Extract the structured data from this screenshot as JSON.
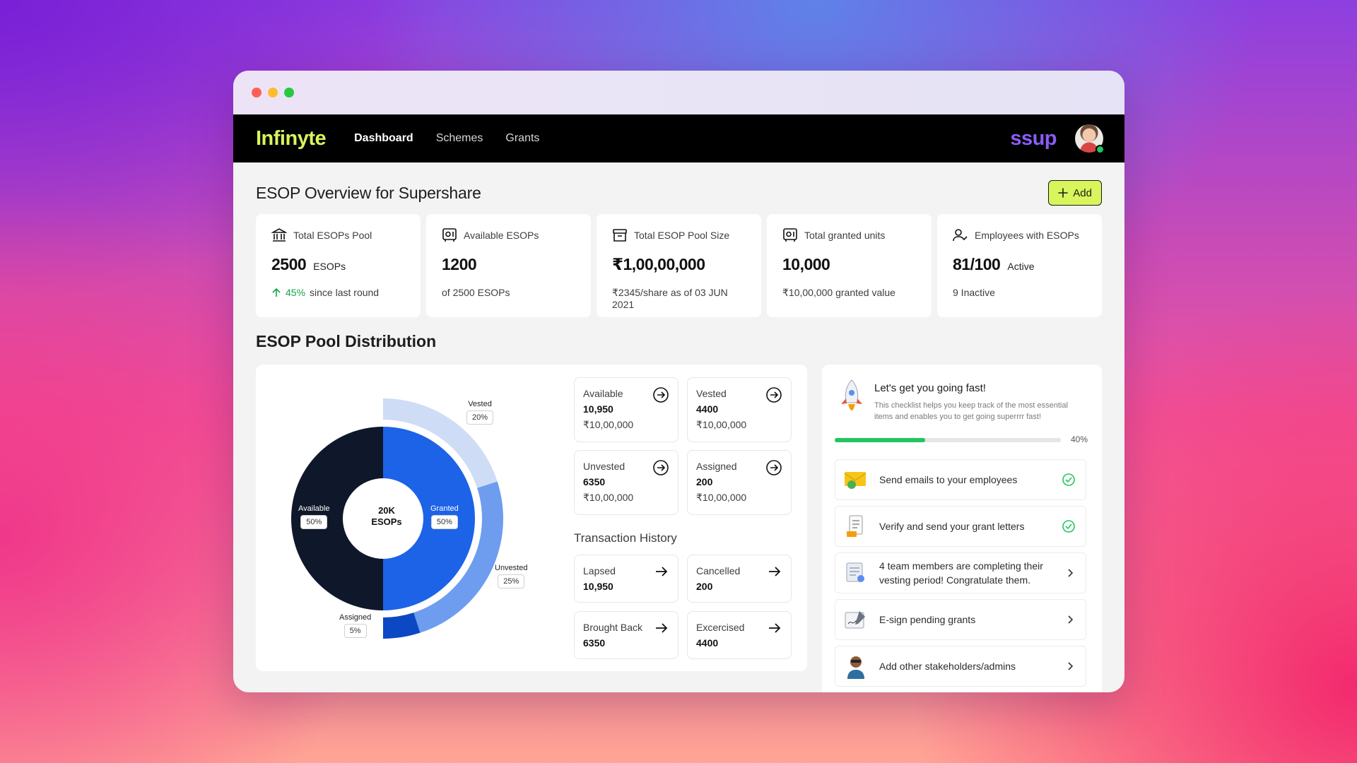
{
  "window": {
    "dots": [
      "#ff5f57",
      "#febc2e",
      "#28c840"
    ]
  },
  "navbar": {
    "logo": "Infinyte",
    "links": [
      "Dashboard",
      "Schemes",
      "Grants"
    ],
    "active": "Dashboard",
    "company_logo": "ssup"
  },
  "overview": {
    "title": "ESOP Overview for Supershare",
    "add_label": "Add"
  },
  "stats": [
    {
      "icon": "bank-icon",
      "label": "Total ESOPs Pool",
      "value": "2500",
      "unit": "ESOPs",
      "trend": "45%",
      "sub": "since last round"
    },
    {
      "icon": "safe-icon",
      "label": "Available ESOPs",
      "value": "1200",
      "unit": "",
      "sub": "of 2500 ESOPs"
    },
    {
      "icon": "archive-icon",
      "label": "Total ESOP Pool Size",
      "value": "₹1,00,00,000",
      "unit": "",
      "sub": "₹2345/share as of 03 JUN 2021"
    },
    {
      "icon": "safe-icon",
      "label": "Total granted units",
      "value": "10,000",
      "unit": "",
      "sub": "₹10,00,000 granted value"
    },
    {
      "icon": "users-icon",
      "label": "Employees with ESOPs",
      "value": "81/100",
      "unit": "Active",
      "sub": "9 Inactive"
    }
  ],
  "distribution": {
    "title": "ESOP Pool Distribution",
    "center_value": "20K",
    "center_unit": "ESOPs",
    "labels": {
      "vested": {
        "name": "Vested",
        "pct": "20%"
      },
      "unvested": {
        "name": "Unvested",
        "pct": "25%"
      },
      "assigned": {
        "name": "Assigned",
        "pct": "5%"
      },
      "available": {
        "name": "Available",
        "pct": "50%"
      },
      "granted": {
        "name": "Granted",
        "pct": "50%"
      }
    },
    "colors": {
      "available": "#0f172a",
      "granted": "#1d63e8",
      "vested": "#cfdcf6",
      "unvested": "#6e9cef",
      "assigned": "#0d48c4"
    },
    "tiles": [
      {
        "label": "Available",
        "value": "10,950",
        "amount": "₹10,00,000"
      },
      {
        "label": "Vested",
        "value": "4400",
        "amount": "₹10,00,000"
      },
      {
        "label": "Unvested",
        "value": "6350",
        "amount": "₹10,00,000"
      },
      {
        "label": "Assigned",
        "value": "200",
        "amount": "₹10,00,000"
      }
    ],
    "transaction_title": "Transaction History",
    "transactions": [
      {
        "label": "Lapsed",
        "value": "10,950"
      },
      {
        "label": "Cancelled",
        "value": "200"
      },
      {
        "label": "Brought Back",
        "value": "6350"
      },
      {
        "label": "Excercised",
        "value": "4400"
      }
    ]
  },
  "chart_data": {
    "type": "pie",
    "title": "",
    "center_label": "20K ESOPs",
    "inner": [
      {
        "label": "Available",
        "value": 50
      },
      {
        "label": "Granted",
        "value": 50
      }
    ],
    "outer": [
      {
        "label": "Vested",
        "value": 20
      },
      {
        "label": "Unvested",
        "value": 25
      },
      {
        "label": "Assigned",
        "value": 5
      }
    ]
  },
  "checklist": {
    "title": "Let's get you going fast!",
    "subtitle": "This checklist helps you keep track of the most essential items and enables you to get going superrrr fast!",
    "progress": 40,
    "progress_label": "40%",
    "tasks": [
      {
        "icon": "email-icon",
        "text": "Send emails to your employees",
        "status": "done"
      },
      {
        "icon": "document-icon",
        "text": "Verify and send your grant letters",
        "status": "done"
      },
      {
        "icon": "certificate-icon",
        "text": "4 team members are completing their vesting period! Congratulate them.",
        "status": "pending"
      },
      {
        "icon": "signature-icon",
        "text": "E-sign pending grants",
        "status": "pending"
      },
      {
        "icon": "person-icon",
        "text": "Add other stakeholders/admins",
        "status": "pending"
      }
    ]
  }
}
